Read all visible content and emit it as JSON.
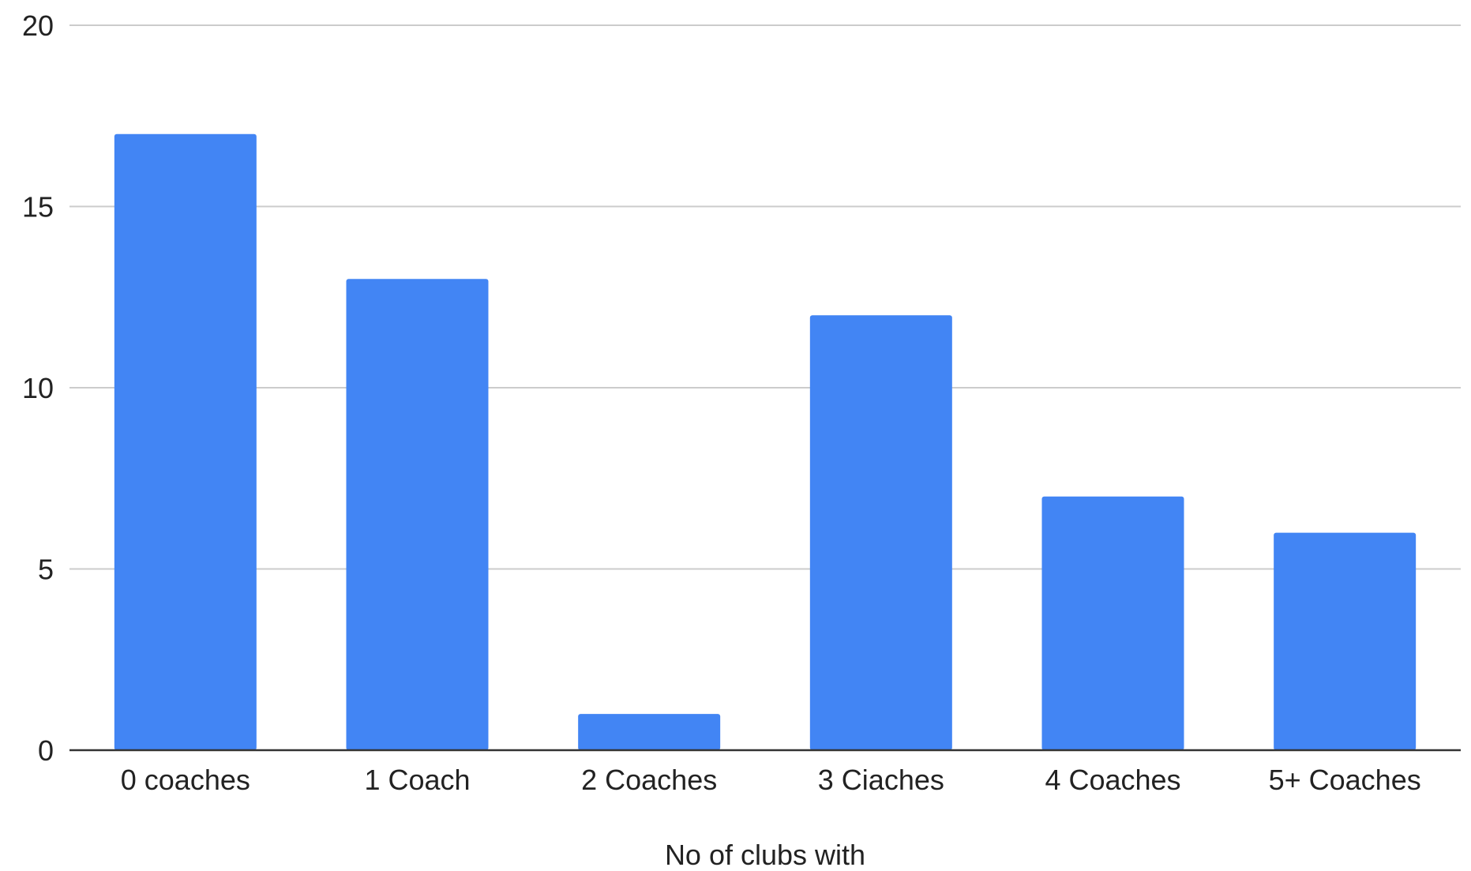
{
  "chart_data": {
    "type": "bar",
    "categories": [
      "0 coaches",
      "1 Coach",
      "2 Coaches",
      "3 Ciaches",
      "4 Coaches",
      "5+ Coaches"
    ],
    "values": [
      17,
      13,
      1,
      12,
      7,
      6
    ],
    "title": "",
    "xlabel": "No of clubs with",
    "ylabel": "",
    "ylim": [
      0,
      20
    ],
    "yticks": [
      0,
      5,
      10,
      15,
      20
    ],
    "grid": true,
    "bar_color": "#4285f4",
    "gridline_color": "#cccccc",
    "baseline_color": "#333333"
  }
}
